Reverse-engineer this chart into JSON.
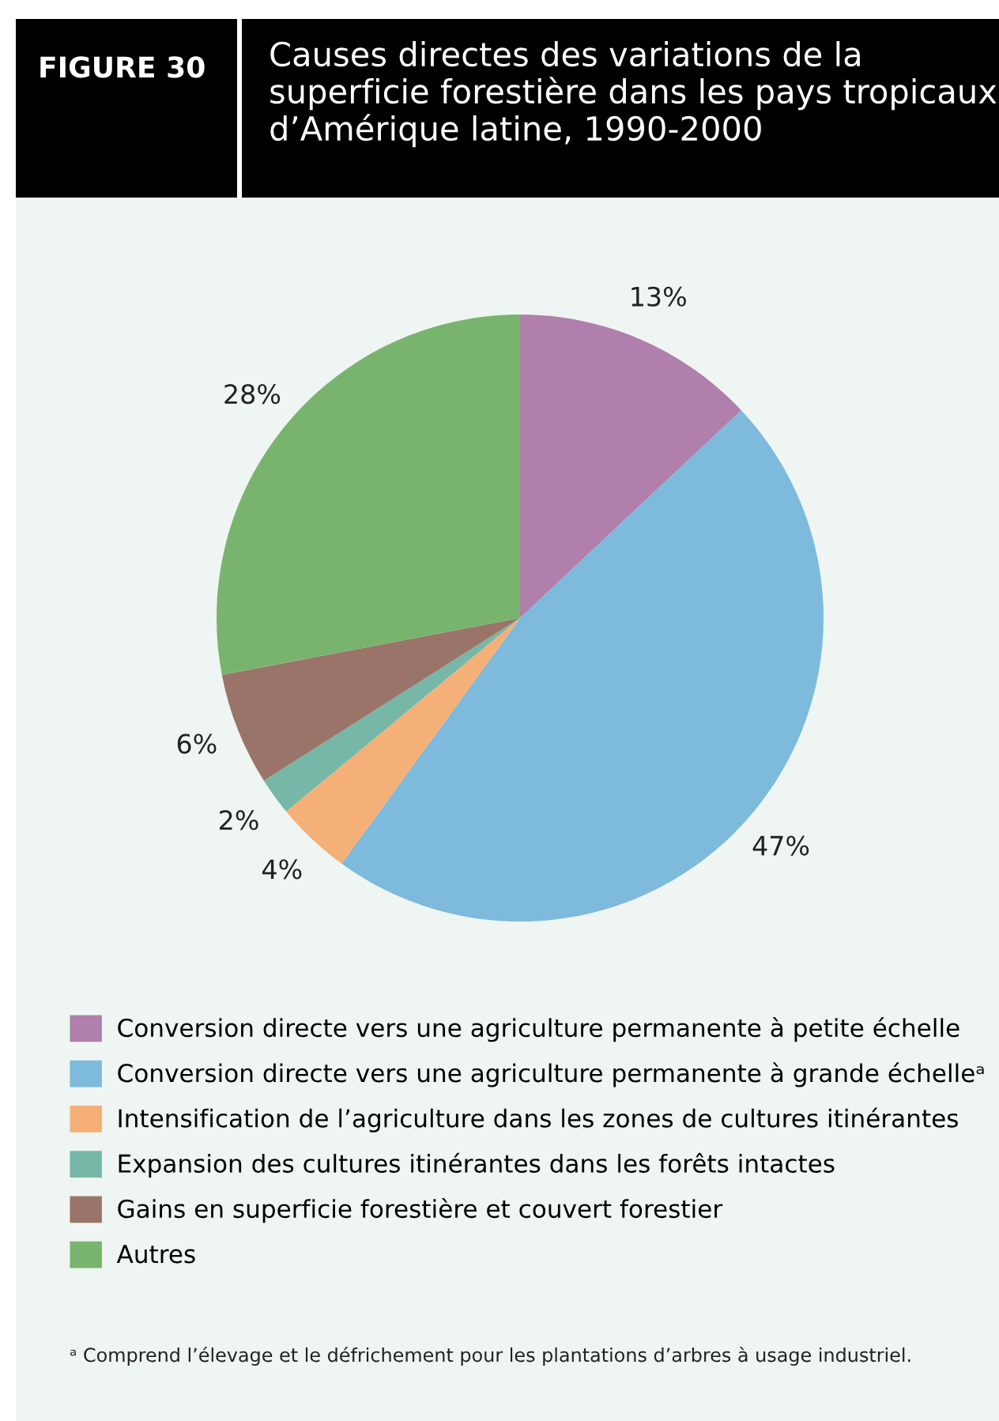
{
  "chart_data": {
    "type": "pie",
    "title": "Causes directes des variations de la superficie forestière dans les pays tropicaux d’Amérique latine, 1990-2000",
    "annotations": [
      "FIGURE 30",
      "ᵃ Comprend l’élevage et le défrichement pour les plantations d’arbres à usage industriel."
    ],
    "categories": [
      "Conversion directe vers une agriculture permanente à petite échelle",
      "Conversion directe vers une agriculture permanente à grande échelleᵃ",
      "Intensification de l’agriculture dans les zones de cultures itinérantes",
      "Expansion des cultures itinérantes dans les forêts intactes",
      "Gains en superficie forestière et couvert forestier",
      "Autres"
    ],
    "values": [
      13,
      47,
      4,
      2,
      6,
      28
    ],
    "value_labels": [
      "13%",
      "47%",
      "4%",
      "2%",
      "6%",
      "28%"
    ],
    "colors": [
      "#b07fac",
      "#7dbadb",
      "#f5b077",
      "#77b7a7",
      "#9a7469",
      "#79b46f"
    ],
    "legend": "bottom"
  }
}
